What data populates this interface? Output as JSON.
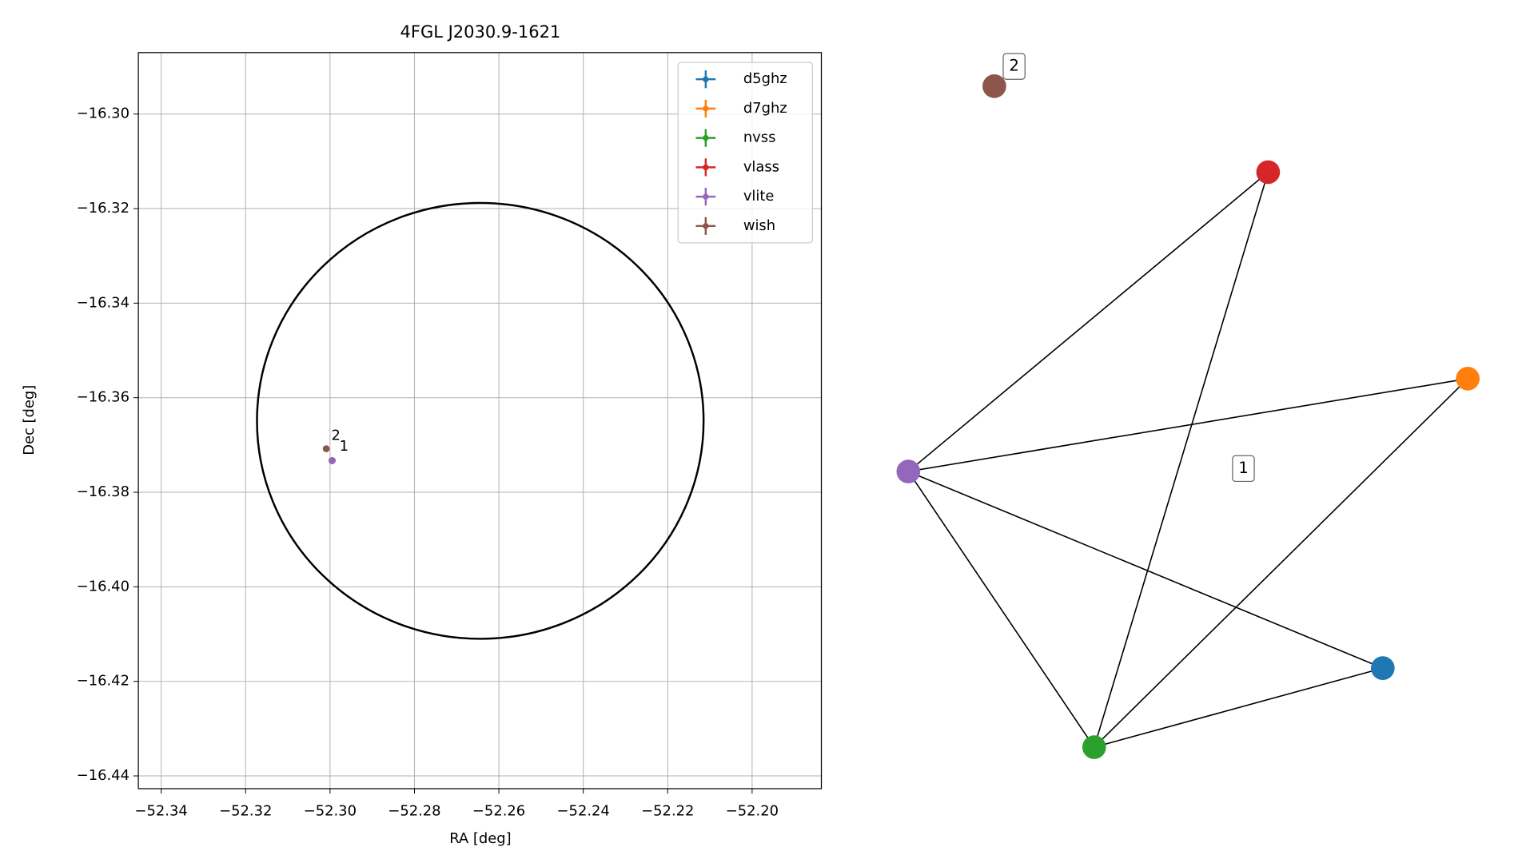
{
  "chart_data": [
    {
      "type": "scatter",
      "title": "4FGL J2030.9-1621",
      "x_label": "RA [deg]",
      "y_label": "Dec [deg]",
      "xlim": [
        -52.3454,
        -52.1836
      ],
      "ylim": [
        -16.4427,
        -16.287
      ],
      "xticks": [
        {
          "value": -52.34,
          "label": "−52.34"
        },
        {
          "value": -52.32,
          "label": "−52.32"
        },
        {
          "value": -52.3,
          "label": "−52.30"
        },
        {
          "value": -52.28,
          "label": "−52.28"
        },
        {
          "value": -52.26,
          "label": "−52.26"
        },
        {
          "value": -52.24,
          "label": "−52.24"
        },
        {
          "value": -52.22,
          "label": "−52.22"
        },
        {
          "value": -52.2,
          "label": "−52.20"
        }
      ],
      "yticks": [
        {
          "value": -16.3,
          "label": "−16.30"
        },
        {
          "value": -16.32,
          "label": "−16.32"
        },
        {
          "value": -16.34,
          "label": "−16.34"
        },
        {
          "value": -16.36,
          "label": "−16.36"
        },
        {
          "value": -16.38,
          "label": "−16.38"
        },
        {
          "value": -16.4,
          "label": "−16.40"
        },
        {
          "value": -16.42,
          "label": "−16.42"
        },
        {
          "value": -16.44,
          "label": "−16.44"
        }
      ],
      "grid": true,
      "legend": "upper right",
      "series": [
        {
          "name": "d5ghz",
          "color": "#1f77b4",
          "x": [
            -52.2995
          ],
          "y": [
            -16.3733
          ]
        },
        {
          "name": "d7ghz",
          "color": "#ff7f0e",
          "x": [
            -52.2995
          ],
          "y": [
            -16.3733
          ]
        },
        {
          "name": "nvss",
          "color": "#2ca02c",
          "x": [
            -52.2995
          ],
          "y": [
            -16.3733
          ]
        },
        {
          "name": "vlass",
          "color": "#d62728",
          "x": [
            -52.2995
          ],
          "y": [
            -16.3733
          ]
        },
        {
          "name": "vlite",
          "color": "#9467bd",
          "x": [
            -52.2995
          ],
          "y": [
            -16.3733
          ]
        },
        {
          "name": "wish",
          "color": "#8c564b",
          "x": [
            -52.3009
          ],
          "y": [
            -16.3708
          ]
        }
      ],
      "region": {
        "center_x": -52.2644,
        "center_y": -16.3649,
        "radius_x": 0.0529,
        "radius_y": 0.0461
      },
      "annotations": [
        {
          "text": "2",
          "x": -52.2986,
          "y": -16.3681
        },
        {
          "text": "1",
          "x": -52.2967,
          "y": -16.3704
        }
      ]
    },
    {
      "type": "network",
      "edges": [
        [
          "vlite",
          "vlass"
        ],
        [
          "vlite",
          "d7ghz"
        ],
        [
          "vlite",
          "d5ghz"
        ],
        [
          "vlite",
          "nvss"
        ],
        [
          "nvss",
          "vlass"
        ],
        [
          "nvss",
          "d7ghz"
        ],
        [
          "nvss",
          "d5ghz"
        ]
      ],
      "group_labels": [
        "1",
        "2"
      ]
    }
  ]
}
